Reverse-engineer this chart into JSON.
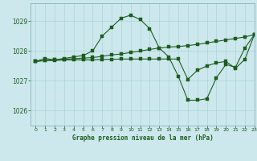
{
  "title": "Graphe pression niveau de la mer (hPa)",
  "background_color": "#cce8ed",
  "grid_color": "#aad4db",
  "line_color": "#1e5c1e",
  "xlim": [
    -0.5,
    23
  ],
  "ylim": [
    1025.5,
    1029.6
  ],
  "yticks": [
    1026,
    1027,
    1028,
    1029
  ],
  "xticks": [
    0,
    1,
    2,
    3,
    4,
    5,
    6,
    7,
    8,
    9,
    10,
    11,
    12,
    13,
    14,
    15,
    16,
    17,
    18,
    19,
    20,
    21,
    22,
    23
  ],
  "series": [
    {
      "x": [
        0,
        1,
        2,
        3,
        4,
        5,
        6,
        7,
        8,
        9,
        10,
        11,
        12,
        13,
        14,
        15,
        16,
        17,
        18,
        19,
        20,
        21,
        22,
        23
      ],
      "y": [
        1027.65,
        1027.75,
        1027.7,
        1027.75,
        1027.8,
        1027.85,
        1028.0,
        1028.5,
        1028.8,
        1029.1,
        1029.2,
        1029.05,
        1028.75,
        1028.1,
        1027.8,
        1027.15,
        1026.35,
        1026.35,
        1026.4,
        1027.1,
        1027.55,
        1027.45,
        1028.1,
        1028.55
      ]
    },
    {
      "x": [
        0,
        1,
        2,
        3,
        4,
        5,
        6,
        7,
        8,
        9,
        10,
        11,
        12,
        13,
        14,
        15,
        16,
        17,
        18,
        19,
        20,
        21,
        22,
        23
      ],
      "y": [
        1027.65,
        1027.68,
        1027.7,
        1027.72,
        1027.74,
        1027.76,
        1027.78,
        1027.82,
        1027.87,
        1027.9,
        1027.95,
        1028.0,
        1028.05,
        1028.1,
        1028.13,
        1028.15,
        1028.18,
        1028.22,
        1028.27,
        1028.32,
        1028.37,
        1028.42,
        1028.47,
        1028.55
      ]
    },
    {
      "x": [
        0,
        1,
        2,
        3,
        4,
        5,
        6,
        7,
        8,
        9,
        10,
        11,
        12,
        13,
        14,
        15,
        16,
        17,
        18,
        19,
        20,
        21,
        22,
        23
      ],
      "y": [
        1027.65,
        1027.68,
        1027.68,
        1027.7,
        1027.7,
        1027.7,
        1027.7,
        1027.72,
        1027.72,
        1027.73,
        1027.73,
        1027.73,
        1027.73,
        1027.73,
        1027.73,
        1027.73,
        1027.05,
        1027.35,
        1027.5,
        1027.6,
        1027.65,
        1027.42,
        1027.72,
        1028.55
      ]
    }
  ]
}
